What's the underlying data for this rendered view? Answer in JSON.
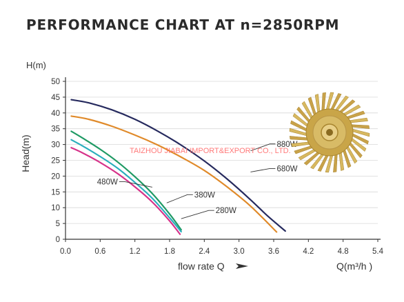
{
  "title": "PERFORMANCE CHART AT n=2850RPM",
  "watermark": "TAIZHOU JIABAI IMPORT&EXPORT CO., LTD.",
  "image": {
    "subject": "impeller-icon"
  },
  "colors": {
    "axis": "#333333",
    "grid": "#d8d8d8",
    "watermark": "#ff6a6a",
    "impeller": "#d3b25a"
  },
  "chart_data": {
    "type": "line",
    "title": "PERFORMANCE CHART AT n=2850RPM",
    "xlabel": "flow rate Q",
    "xunit_label": "Q(m³/h )",
    "ylabel": "Head(m)",
    "yunit_label": "H(m)",
    "xlim": [
      0,
      5.4
    ],
    "ylim": [
      0,
      50
    ],
    "xticks": [
      "0.0",
      "0.6",
      "1.2",
      "1.8",
      "2.4",
      "3.0",
      "3.6",
      "4.2",
      "4.8",
      "5.4"
    ],
    "yticks": [
      "0",
      "5",
      "10",
      "15",
      "20",
      "25",
      "30",
      "35",
      "40",
      "45",
      "50"
    ],
    "grid": true,
    "series": [
      {
        "name": "880W",
        "color": "#262a5e",
        "x": [
          0.1,
          0.4,
          0.8,
          1.2,
          1.6,
          2.0,
          2.4,
          2.8,
          3.2,
          3.5,
          3.8
        ],
        "y": [
          44.2,
          43.2,
          41.0,
          38.0,
          34.2,
          29.8,
          24.8,
          19.0,
          12.5,
          7.3,
          2.6
        ]
      },
      {
        "name": "680W",
        "color": "#e08a2a",
        "x": [
          0.1,
          0.4,
          0.8,
          1.2,
          1.6,
          2.0,
          2.4,
          2.8,
          3.2,
          3.65
        ],
        "y": [
          39.0,
          38.0,
          35.8,
          33.0,
          29.8,
          26.0,
          21.8,
          16.5,
          10.5,
          2.3
        ]
      },
      {
        "name": "480W",
        "color": "#1f9a64",
        "x": [
          0.1,
          0.3,
          0.6,
          0.9,
          1.2,
          1.5,
          1.8,
          2.0
        ],
        "y": [
          34.2,
          32.0,
          28.5,
          24.5,
          19.8,
          14.5,
          8.0,
          3.0
        ]
      },
      {
        "name": "380W",
        "color": "#2aaebc",
        "x": [
          0.1,
          0.3,
          0.6,
          0.9,
          1.2,
          1.5,
          1.8,
          2.0
        ],
        "y": [
          31.5,
          29.5,
          26.2,
          22.5,
          18.0,
          13.0,
          6.8,
          2.4
        ]
      },
      {
        "name": "280W",
        "color": "#d6338a",
        "x": [
          0.1,
          0.3,
          0.6,
          0.9,
          1.2,
          1.5,
          1.8,
          1.98
        ],
        "y": [
          29.0,
          27.3,
          24.3,
          20.8,
          16.6,
          11.8,
          5.8,
          1.6
        ]
      }
    ],
    "annotations": [
      {
        "text": "880W",
        "series": "880W",
        "point": [
          3.2,
          28.0
        ]
      },
      {
        "text": "680W",
        "series": "680W",
        "point": [
          3.2,
          21.3
        ]
      },
      {
        "text": "480W",
        "series": "480W",
        "point": [
          1.5,
          16.5
        ]
      },
      {
        "text": "380W",
        "series": "380W",
        "point": [
          1.75,
          11.5
        ]
      },
      {
        "text": "280W",
        "series": "280W",
        "point": [
          2.0,
          6.5
        ]
      }
    ]
  }
}
